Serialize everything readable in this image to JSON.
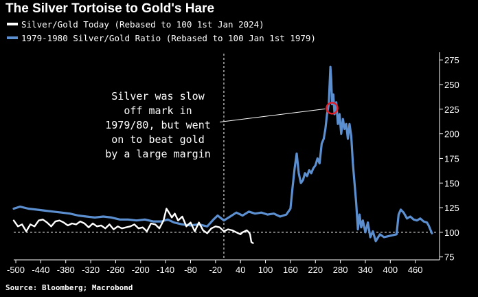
{
  "title": "The Silver Tortoise to Gold's Hare",
  "legend": [
    {
      "label": "Silver/Gold Today (Rebased to 100 1st Jan 2024)",
      "color": "#ffffff"
    },
    {
      "label": "1979-1980 Silver/Gold Ratio (Rebased to 100 Jan 1st 1979)",
      "color": "#5b8fd0"
    }
  ],
  "annotation": {
    "lines": [
      "Silver was slow",
      "off mark in",
      "1979/80, but went",
      "on to beat gold",
      "by a large margin"
    ],
    "highlight_color": "#e0202a",
    "target": {
      "x": 260,
      "y": 226
    }
  },
  "source": "Source: Bloomberg; Macrobond",
  "chart_data": {
    "type": "line",
    "title": "The Silver Tortoise to Gold's Hare",
    "xlabel": "",
    "ylabel": "",
    "xlim": [
      -505,
      515
    ],
    "ylim": [
      72,
      280
    ],
    "x_ticks": [
      -500,
      -440,
      -380,
      -320,
      -260,
      -200,
      -140,
      -80,
      -20,
      40,
      100,
      160,
      220,
      280,
      340,
      400,
      460
    ],
    "x_tick_labels": [
      "-500",
      "-440",
      "-380",
      "-320",
      "-260",
      "-200",
      "-140",
      "-80",
      "-20",
      "40",
      "100",
      "160",
      "220",
      "280",
      "340",
      "400",
      "460"
    ],
    "y_ticks": [
      75,
      100,
      125,
      150,
      175,
      200,
      225,
      250,
      275
    ],
    "y_tick_labels": [
      "75",
      "100",
      "125",
      "150",
      "175",
      "200",
      "225",
      "250",
      "275"
    ],
    "reference_lines": [
      {
        "axis": "y",
        "value": 100,
        "style": "dashed"
      },
      {
        "axis": "x",
        "value": 0,
        "style": "dashed"
      }
    ],
    "grid": false,
    "series": [
      {
        "name": "1979-1980 Silver/Gold Ratio (Rebased to 100 Jan 1st 1979)",
        "color": "#5b8fd0",
        "x": [
          -505,
          -490,
          -470,
          -450,
          -430,
          -410,
          -390,
          -370,
          -350,
          -330,
          -310,
          -290,
          -270,
          -250,
          -230,
          -210,
          -190,
          -170,
          -150,
          -135,
          -120,
          -100,
          -80,
          -60,
          -40,
          -25,
          -15,
          0,
          15,
          30,
          45,
          60,
          75,
          90,
          105,
          120,
          135,
          150,
          160,
          165,
          170,
          175,
          180,
          185,
          190,
          195,
          200,
          205,
          210,
          215,
          220,
          225,
          230,
          235,
          240,
          244,
          248,
          252,
          256,
          258,
          260,
          263,
          266,
          270,
          274,
          278,
          282,
          286,
          290,
          294,
          298,
          302,
          306,
          310,
          314,
          318,
          322,
          326,
          330,
          334,
          340,
          346,
          352,
          358,
          365,
          375,
          385,
          395,
          405,
          415,
          420,
          425,
          432,
          440,
          448,
          456,
          464,
          472,
          480,
          488,
          492,
          496,
          500
        ],
        "y": [
          124,
          126,
          124,
          123,
          122,
          121,
          120,
          119,
          117,
          116,
          115,
          116,
          115,
          113,
          113,
          112,
          113,
          111,
          111,
          113,
          110,
          108,
          107,
          108,
          106,
          113,
          117,
          112,
          116,
          120,
          117,
          121,
          119,
          120,
          118,
          119,
          116,
          118,
          124,
          145,
          165,
          180,
          160,
          150,
          153,
          160,
          157,
          163,
          160,
          165,
          168,
          175,
          170,
          190,
          195,
          205,
          220,
          230,
          268,
          255,
          230,
          240,
          220,
          232,
          210,
          220,
          200,
          215,
          205,
          210,
          195,
          210,
          198,
          170,
          150,
          130,
          103,
          118,
          105,
          112,
          100,
          110,
          95,
          101,
          91,
          98,
          95,
          96,
          97,
          98,
          118,
          123,
          120,
          114,
          116,
          113,
          112,
          114,
          111,
          110,
          107,
          103,
          99
        ]
      },
      {
        "name": "Silver/Gold Today (Rebased to 100 1st Jan 2024)",
        "color": "#ffffff",
        "x": [
          -505,
          -495,
          -485,
          -475,
          -465,
          -455,
          -445,
          -435,
          -425,
          -415,
          -405,
          -395,
          -385,
          -375,
          -365,
          -355,
          -345,
          -335,
          -325,
          -315,
          -305,
          -295,
          -285,
          -275,
          -265,
          -255,
          -245,
          -235,
          -225,
          -215,
          -205,
          -195,
          -185,
          -175,
          -165,
          -155,
          -145,
          -138,
          -132,
          -125,
          -118,
          -110,
          -100,
          -90,
          -80,
          -70,
          -60,
          -50,
          -40,
          -30,
          -20,
          -10,
          0,
          10,
          20,
          30,
          40,
          45,
          50,
          55,
          60,
          63,
          66,
          70
        ],
        "y": [
          112,
          106,
          108,
          101,
          108,
          106,
          112,
          113,
          110,
          106,
          111,
          112,
          110,
          107,
          109,
          108,
          111,
          109,
          105,
          109,
          106,
          107,
          104,
          108,
          103,
          106,
          104,
          105,
          106,
          108,
          104,
          105,
          101,
          109,
          108,
          104,
          112,
          124,
          120,
          115,
          119,
          112,
          116,
          106,
          110,
          101,
          110,
          102,
          99,
          104,
          106,
          105,
          101,
          103,
          102,
          100,
          98,
          100,
          101,
          102,
          100,
          98,
          90,
          89
        ]
      }
    ]
  }
}
